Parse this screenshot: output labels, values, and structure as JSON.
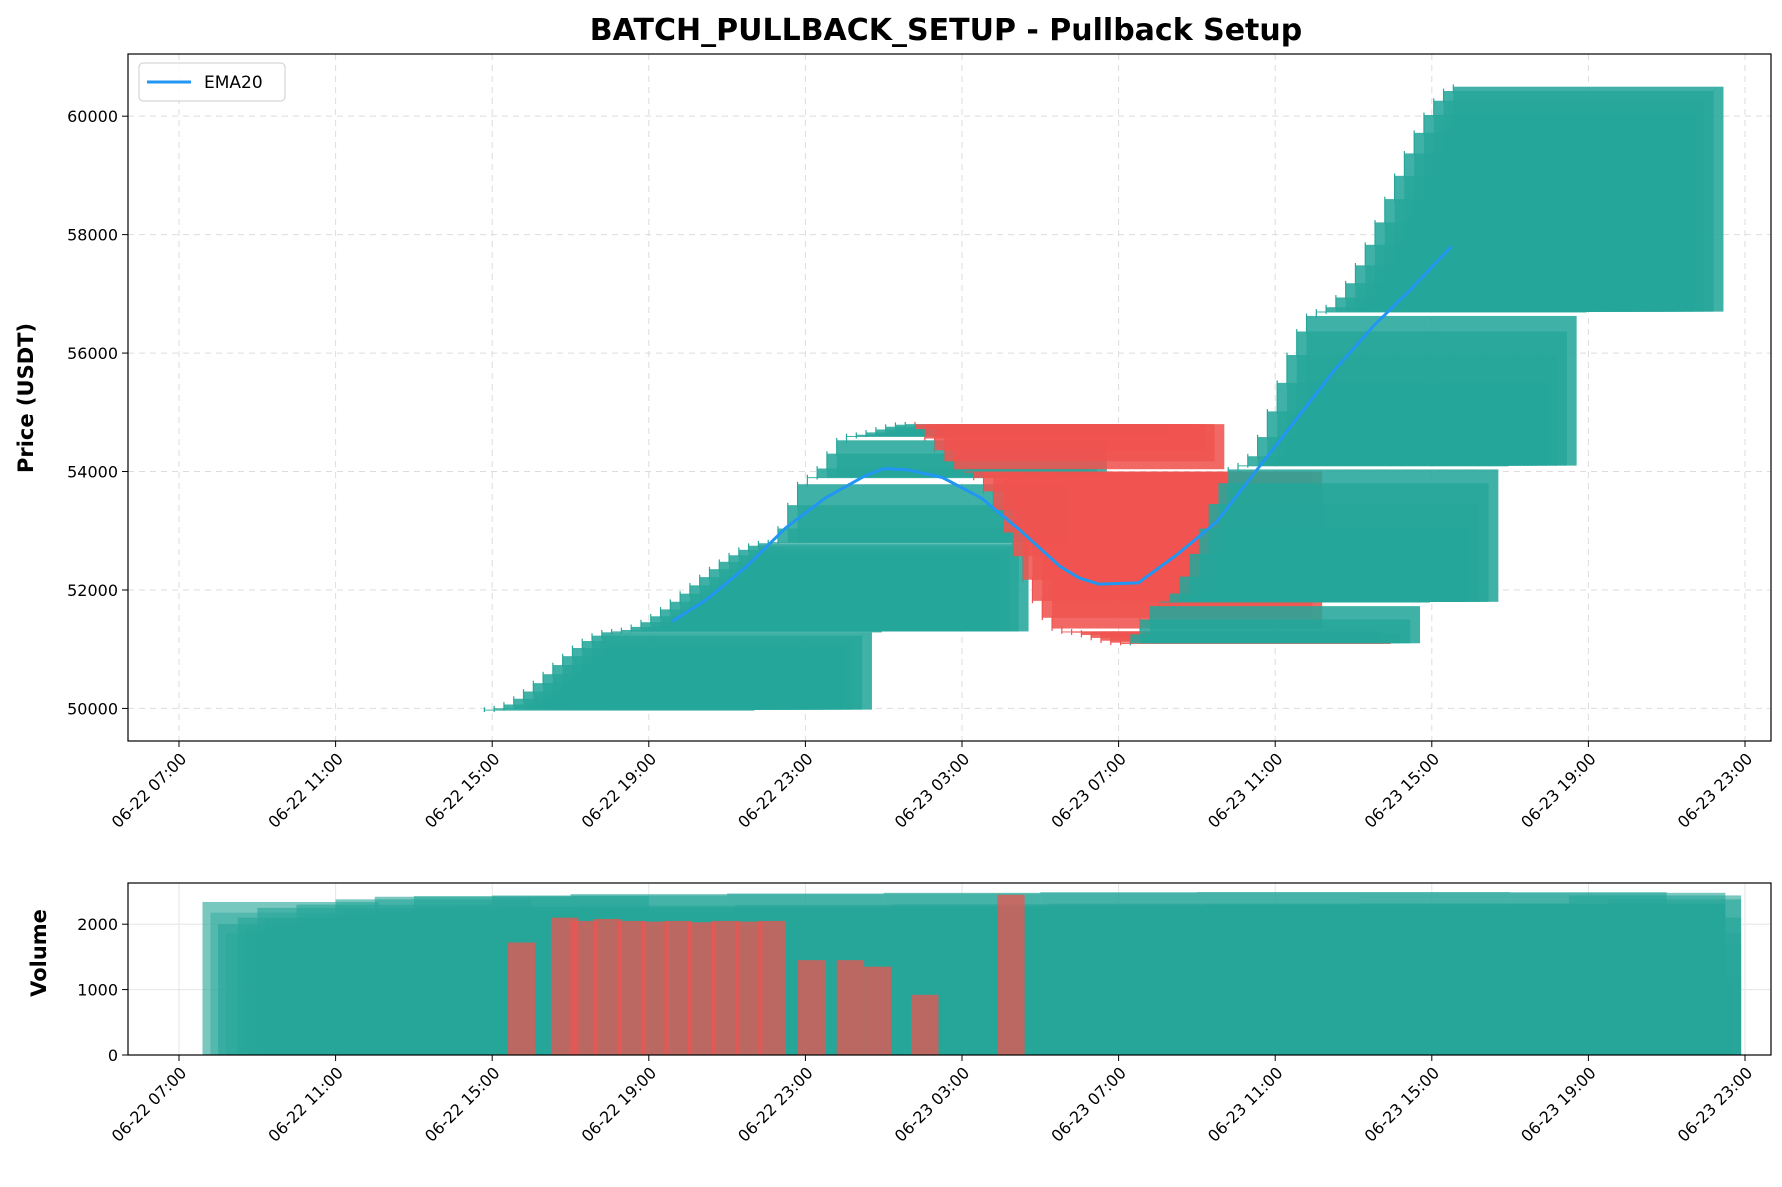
{
  "chart_data": [
    {
      "type": "line",
      "title": "BATCH_PULLBACK_SETUP - Pullback Setup",
      "ylabel": "Price (USDT)",
      "xlabel": "",
      "x_ticks": [
        "06-22 07:00",
        "06-22 11:00",
        "06-22 15:00",
        "06-22 19:00",
        "06-22 23:00",
        "06-23 03:00",
        "06-23 07:00",
        "06-23 11:00",
        "06-23 15:00",
        "06-23 19:00",
        "06-23 23:00"
      ],
      "y_ticks": [
        50000,
        52000,
        54000,
        56000,
        58000,
        60000
      ],
      "ylim": [
        49450,
        61050
      ],
      "x_range_hours": [
        -1.4,
        40.8
      ],
      "grid": true,
      "grid_style": "dashed",
      "legend_position": "upper-left",
      "colors": {
        "up": "#26a69a",
        "down": "#ef5350",
        "ema": "#2196f3",
        "volume_up": "#26a69a",
        "volume_down": "#ef5350"
      },
      "series": [
        {
          "name": "EMA20",
          "x_hours": [
            12.6,
            13.5,
            14.5,
            15.5,
            16.5,
            17.5,
            18.0,
            18.6,
            19.5,
            20.5,
            21.5,
            22.5,
            23.0,
            23.5,
            24.5,
            25.5,
            26.5,
            27.5,
            28.5,
            29.5,
            30.5,
            31.5,
            32.5,
            33.5,
            34.2
          ],
          "values": [
            51470,
            51850,
            52400,
            53050,
            53550,
            53920,
            54050,
            54030,
            53900,
            53550,
            53000,
            52400,
            52200,
            52100,
            52120,
            52600,
            53150,
            54000,
            54850,
            55700,
            56450,
            57100,
            57800,
            57800,
            57800
          ]
        }
      ],
      "ema_drawn_until_hour": 32.6,
      "candles_hour_range": [
        7.8,
        32.6
      ],
      "price_path": {
        "x_hours": [
          7.8,
          11.0,
          15.0,
          16.0,
          17.0,
          18.5,
          20.0,
          22.5,
          24.0,
          25.0,
          27.0,
          29.0,
          32.6
        ],
        "values": [
          49980,
          51300,
          52800,
          53900,
          54600,
          54800,
          54000,
          51300,
          51100,
          51800,
          54100,
          56700,
          60500
        ]
      }
    },
    {
      "type": "bar",
      "title": "",
      "ylabel": "Volume",
      "y_ticks": [
        0,
        1000,
        2000
      ],
      "ylim": [
        0,
        2630
      ],
      "x_ticks": [
        "06-22 07:00",
        "06-22 11:00",
        "06-22 15:00",
        "06-22 19:00",
        "06-22 23:00",
        "06-23 03:00",
        "06-23 07:00",
        "06-23 11:00",
        "06-23 15:00",
        "06-23 19:00",
        "06-23 23:00"
      ],
      "grid": true,
      "volume_profile": {
        "x_hours": [
          0.6,
          1.0,
          1.5,
          2.0,
          3.0,
          4.0,
          5.0,
          6.0,
          8.0,
          10.0,
          14.0,
          18.0,
          22.0,
          26.0,
          30.0,
          34.0,
          35.5,
          36.5,
          37.2,
          38.0,
          38.6,
          39.3
        ],
        "values": [
          2340,
          2000,
          2100,
          2250,
          2300,
          2380,
          2420,
          2430,
          2440,
          2460,
          2470,
          2480,
          2490,
          2490,
          2490,
          2480,
          2440,
          2380,
          2100,
          1870,
          1700,
          1200
        ]
      },
      "down_bars": [
        {
          "x_hours": 8.4,
          "value": 1720
        },
        {
          "x_hours": 9.5,
          "value": 2100
        },
        {
          "x_hours": 10.0,
          "value": 2050
        },
        {
          "x_hours": 10.6,
          "value": 2080
        },
        {
          "x_hours": 11.2,
          "value": 2050
        },
        {
          "x_hours": 11.8,
          "value": 2040
        },
        {
          "x_hours": 12.4,
          "value": 2050
        },
        {
          "x_hours": 13.0,
          "value": 2030
        },
        {
          "x_hours": 13.6,
          "value": 2050
        },
        {
          "x_hours": 14.2,
          "value": 2040
        },
        {
          "x_hours": 14.8,
          "value": 2050
        },
        {
          "x_hours": 15.8,
          "value": 1450
        },
        {
          "x_hours": 16.8,
          "value": 1450
        },
        {
          "x_hours": 17.5,
          "value": 1350
        },
        {
          "x_hours": 18.7,
          "value": 920
        },
        {
          "x_hours": 20.9,
          "value": 2450
        }
      ]
    }
  ],
  "legend": {
    "label": "EMA20"
  }
}
